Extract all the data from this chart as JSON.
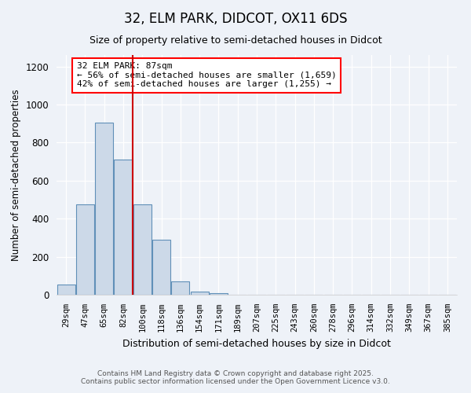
{
  "title": "32, ELM PARK, DIDCOT, OX11 6DS",
  "subtitle": "Size of property relative to semi-detached houses in Didcot",
  "xlabel": "Distribution of semi-detached houses by size in Didcot",
  "ylabel": "Number of semi-detached properties",
  "bar_color": "#ccd9e8",
  "bar_edge_color": "#6090b8",
  "background_color": "#eef2f8",
  "grid_color": "#ffffff",
  "categories": [
    "29sqm",
    "47sqm",
    "65sqm",
    "82sqm",
    "100sqm",
    "118sqm",
    "136sqm",
    "154sqm",
    "171sqm",
    "189sqm",
    "207sqm",
    "225sqm",
    "243sqm",
    "260sqm",
    "278sqm",
    "296sqm",
    "314sqm",
    "332sqm",
    "349sqm",
    "367sqm",
    "385sqm"
  ],
  "values": [
    55,
    475,
    905,
    710,
    475,
    290,
    70,
    15,
    10,
    0,
    0,
    0,
    0,
    0,
    0,
    0,
    0,
    0,
    0,
    0,
    0
  ],
  "ylim": [
    0,
    1260
  ],
  "yticks": [
    0,
    200,
    400,
    600,
    800,
    1000,
    1200
  ],
  "red_line_bar_index": 3,
  "annotation_text": "32 ELM PARK: 87sqm\n← 56% of semi-detached houses are smaller (1,659)\n42% of semi-detached houses are larger (1,255) →",
  "footer_line1": "Contains HM Land Registry data © Crown copyright and database right 2025.",
  "footer_line2": "Contains public sector information licensed under the Open Government Licence v3.0."
}
